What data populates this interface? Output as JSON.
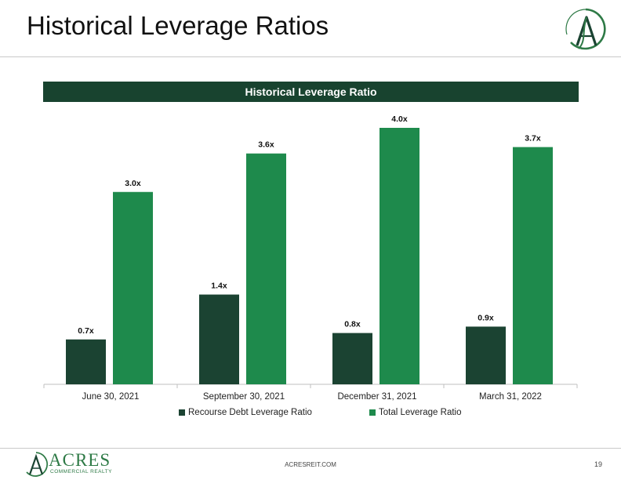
{
  "slide": {
    "title": "Historical Leverage Ratios",
    "footer_url": "ACRESREIT.COM",
    "page_number": "19"
  },
  "brand": {
    "name": "ACRES",
    "subtitle": "COMMERCIAL REALTY",
    "accent_color": "#2e7a46",
    "logo_icon": "acres-a-logo-icon"
  },
  "chart_data": {
    "type": "bar",
    "title": "Historical Leverage Ratio",
    "categories": [
      "June 30, 2021",
      "September 30, 2021",
      "December 31, 2021",
      "March 31, 2022"
    ],
    "series": [
      {
        "name": "Recourse Debt Leverage Ratio",
        "values": [
          0.7,
          1.4,
          0.8,
          0.9
        ],
        "labels": [
          "0.7x",
          "1.4x",
          "0.8x",
          "0.9x"
        ],
        "color": "#1b4332"
      },
      {
        "name": "Total Leverage Ratio",
        "values": [
          3.0,
          3.6,
          4.0,
          3.7
        ],
        "labels": [
          "3.0x",
          "3.6x",
          "4.0x",
          "3.7x"
        ],
        "color": "#1e8a4c"
      }
    ],
    "ylim": [
      0,
      4.0
    ],
    "grid": false,
    "legend_position": "bottom",
    "xlabel": "",
    "ylabel": ""
  }
}
